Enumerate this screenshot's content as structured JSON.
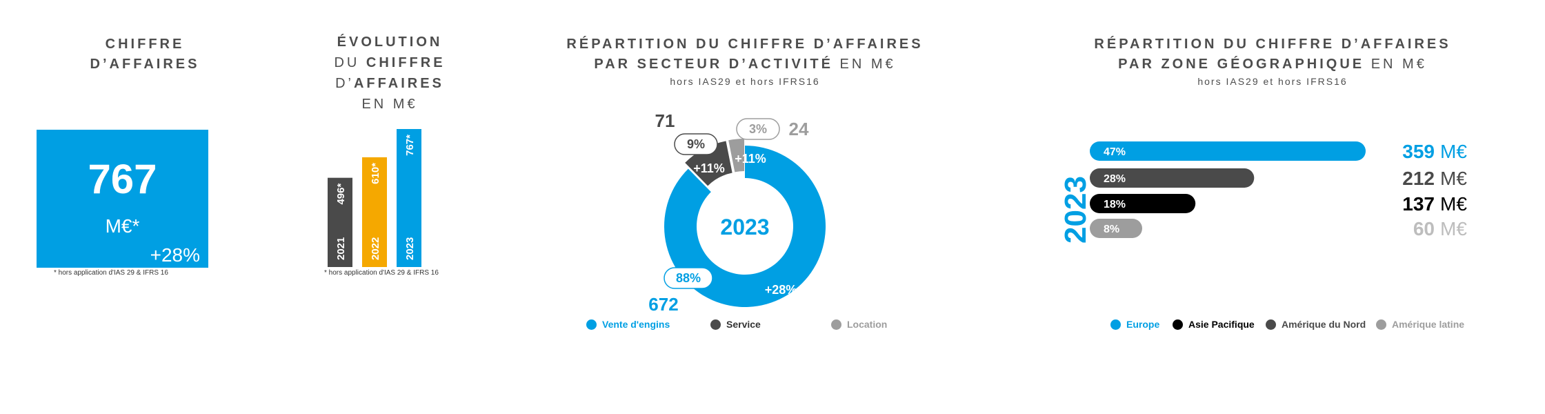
{
  "panel1": {
    "title_line1": "CHIFFRE",
    "title_line2": "D’AFFAIRES",
    "value": "767",
    "unit": "M€*",
    "growth": "+28%",
    "footnote": "* hors application d'IAS 29 & IFRS 16",
    "color": "#009fe3"
  },
  "panel2": {
    "title_line1": "ÉVOLUTION",
    "title_line2_light": "DU ",
    "title_line2_bold": "CHIFFRE",
    "title_line3_light": "D’",
    "title_line3_bold": "AFFAIRES",
    "title_line4": "EN M€",
    "footnote": "* hors application d'IAS 29 & IFRS 16"
  },
  "panel3": {
    "title_line1": "RÉPARTITION DU CHIFFRE D’AFFAIRES",
    "title_line2_bold": "PAR SECTEUR D’ACTIVITÉ",
    "title_line2_light": " EN M€",
    "subtitle": "hors IAS29 et hors IFRS16",
    "center_label": "2023"
  },
  "panel4": {
    "title_line1": "RÉPARTITION DU CHIFFRE D’AFFAIRES",
    "title_line2_bold": "PAR ZONE GÉOGRAPHIQUE",
    "title_line2_light": " EN M€",
    "subtitle": "hors IAS29 et hors IFRS16",
    "year_label": "2023",
    "unit": "M€"
  },
  "chart_data": [
    {
      "type": "bar",
      "categories": [
        "2021",
        "2022",
        "2023"
      ],
      "values": [
        496,
        610,
        767
      ],
      "value_labels": [
        "496*",
        "610*",
        "767*"
      ],
      "colors": [
        "#4a4a4a",
        "#f5a800",
        "#009fe3"
      ]
    },
    {
      "type": "pie",
      "center_label": "2023",
      "slices": [
        {
          "name": "Vente d'engins",
          "value": 672,
          "share": "88%",
          "growth": "+28%",
          "color": "#009fe3"
        },
        {
          "name": "Service",
          "value": 71,
          "share": "9%",
          "growth": "+11%",
          "color": "#4a4a4a"
        },
        {
          "name": "Location",
          "value": 24,
          "share": "3%",
          "growth": "+11%",
          "color": "#9d9d9d"
        }
      ]
    },
    {
      "type": "bar",
      "orientation": "horizontal",
      "year": "2023",
      "series": [
        {
          "name": "Europe",
          "share": 47,
          "share_label": "47%",
          "value": 359,
          "color": "#009fe3"
        },
        {
          "name": "Amérique du Nord",
          "share": 28,
          "share_label": "28%",
          "value": 212,
          "color": "#4a4a4a"
        },
        {
          "name": "Asie Pacifique",
          "share": 18,
          "share_label": "18%",
          "value": 137,
          "color": "#000000"
        },
        {
          "name": "Amérique latine",
          "share": 8,
          "share_label": "8%",
          "value": 60,
          "color": "#9d9d9d"
        }
      ],
      "legend": [
        {
          "name": "Europe",
          "color": "#009fe3"
        },
        {
          "name": "Asie Pacifique",
          "color": "#000000"
        },
        {
          "name": "Amérique du Nord",
          "color": "#4a4a4a"
        },
        {
          "name": "Amérique latine",
          "color": "#9d9d9d"
        }
      ]
    }
  ]
}
